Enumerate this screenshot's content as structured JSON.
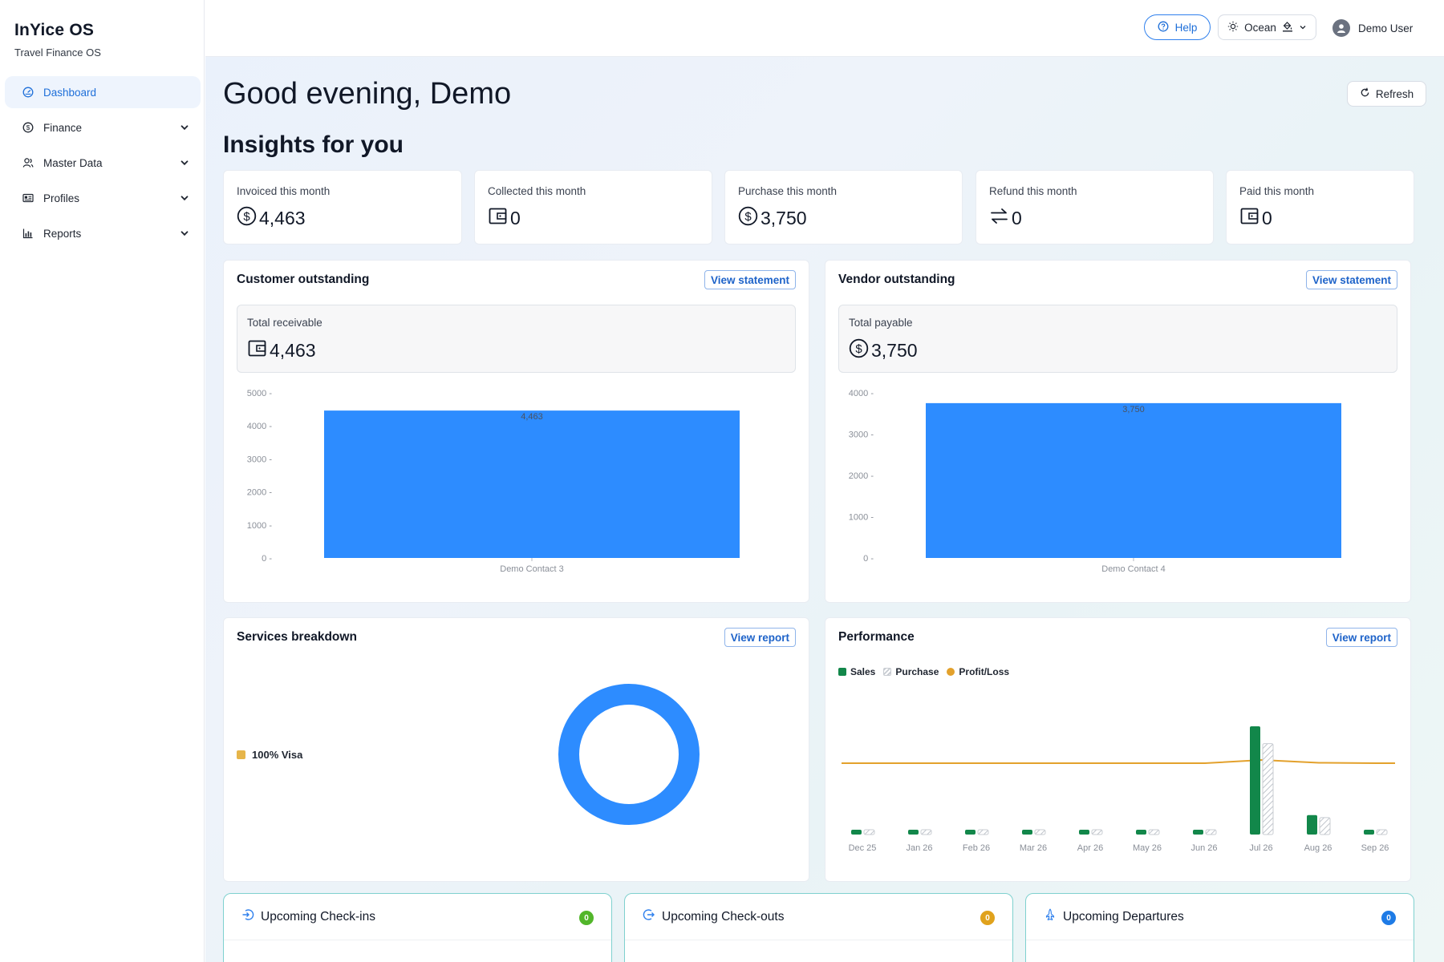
{
  "brand": {
    "title": "InYice OS",
    "subtitle": "Travel Finance OS"
  },
  "sidebar": {
    "items": [
      {
        "label": "Dashboard",
        "icon": "dashboard-icon",
        "active": true,
        "expandable": false
      },
      {
        "label": "Finance",
        "icon": "dollar-circle-icon",
        "active": false,
        "expandable": true
      },
      {
        "label": "Master Data",
        "icon": "users-icon",
        "active": false,
        "expandable": true
      },
      {
        "label": "Profiles",
        "icon": "id-card-icon",
        "active": false,
        "expandable": true
      },
      {
        "label": "Reports",
        "icon": "bar-chart-icon",
        "active": false,
        "expandable": true
      }
    ]
  },
  "topbar": {
    "help_label": "Help",
    "theme_label": "Ocean",
    "user_name": "Demo User"
  },
  "header": {
    "greeting": "Good evening, Demo",
    "subtitle": "Insights for you",
    "refresh_label": "Refresh"
  },
  "kpis": [
    {
      "label": "Invoiced this month",
      "value": "4,463",
      "icon": "dollar-circle-icon"
    },
    {
      "label": "Collected this month",
      "value": "0",
      "icon": "wallet-icon"
    },
    {
      "label": "Purchase this month",
      "value": "3,750",
      "icon": "dollar-circle-icon"
    },
    {
      "label": "Refund this month",
      "value": "0",
      "icon": "exchange-icon"
    },
    {
      "label": "Paid this month",
      "value": "0",
      "icon": "wallet-icon"
    }
  ],
  "customer": {
    "title": "Customer outstanding",
    "link": "View statement",
    "total_label": "Total receivable",
    "total_value": "4,463"
  },
  "vendor": {
    "title": "Vendor outstanding",
    "link": "View statement",
    "total_label": "Total payable",
    "total_value": "3,750"
  },
  "services": {
    "title": "Services breakdown",
    "link": "View report",
    "legend_label": "100% Visa"
  },
  "performance": {
    "title": "Performance",
    "link": "View report",
    "legend": [
      "Sales",
      "Purchase",
      "Profit/Loss"
    ]
  },
  "upcoming": [
    {
      "title": "Upcoming Check-ins",
      "count": "0",
      "icon": "check-in-icon",
      "badge_color": "#52b62a"
    },
    {
      "title": "Upcoming Check-outs",
      "count": "0",
      "icon": "check-out-icon",
      "badge_color": "#e0a21c"
    },
    {
      "title": "Upcoming Departures",
      "count": "0",
      "icon": "departure-icon",
      "badge_color": "#1e7be6"
    }
  ],
  "colors": {
    "accent": "#2f80ed",
    "bar": "#2d8cff",
    "sales": "#12874a",
    "profit": "#e3a12c",
    "visa": "#e6b54a"
  },
  "chart_data": [
    {
      "type": "bar",
      "categories": [
        "Demo Contact 3"
      ],
      "values": [
        4463
      ],
      "data_labels": [
        "4,463"
      ],
      "ylim": [
        0,
        5000
      ],
      "yticks": [
        0,
        1000,
        2000,
        3000,
        4000,
        5000
      ]
    },
    {
      "type": "bar",
      "categories": [
        "Demo Contact 4"
      ],
      "values": [
        3750
      ],
      "data_labels": [
        "3,750"
      ],
      "ylim": [
        0,
        4000
      ],
      "yticks": [
        0,
        1000,
        2000,
        3000,
        4000
      ]
    },
    {
      "type": "pie",
      "donut": true,
      "slices": [
        {
          "label": "Visa",
          "value": 100
        }
      ]
    },
    {
      "type": "bar",
      "categories": [
        "Dec 25",
        "Jan 26",
        "Feb 26",
        "Mar 26",
        "Apr 26",
        "May 26",
        "Jun 26",
        "Jul 26",
        "Aug 26",
        "Sep 26"
      ],
      "series": [
        {
          "name": "Sales",
          "values": [
            40,
            40,
            40,
            40,
            40,
            40,
            40,
            4463,
            800,
            40
          ]
        },
        {
          "name": "Purchase",
          "values": [
            40,
            40,
            40,
            40,
            40,
            40,
            40,
            3750,
            700,
            40
          ]
        },
        {
          "name": "Profit/Loss",
          "type": "line",
          "values": [
            0,
            0,
            0,
            0,
            0,
            0,
            0,
            713,
            100,
            0
          ]
        }
      ],
      "legend": "top-left"
    }
  ]
}
